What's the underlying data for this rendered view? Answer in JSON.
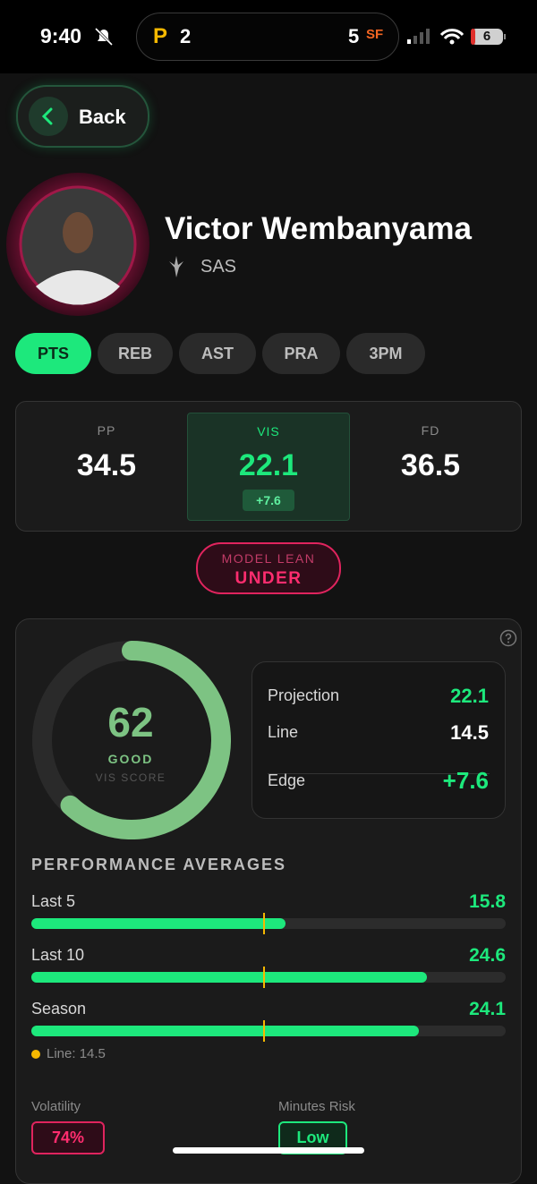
{
  "status_bar": {
    "time": "9:40",
    "away_logo": "P",
    "away_score": "2",
    "home_score": "5",
    "home_logo": "SF",
    "battery": "6"
  },
  "back": "Back",
  "player": {
    "name": "Victor Wembanyama",
    "team": "SAS"
  },
  "tabs": [
    "PTS",
    "REB",
    "AST",
    "PRA",
    "3PM"
  ],
  "lines": [
    {
      "label": "PP",
      "value": "34.5"
    },
    {
      "label": "VIS",
      "value": "22.1",
      "diff": "+7.6"
    },
    {
      "label": "FD",
      "value": "36.5"
    }
  ],
  "model_lean": {
    "label": "MODEL LEAN",
    "value": "UNDER"
  },
  "score": {
    "value": 62,
    "rating": "GOOD",
    "label": "VIS SCORE"
  },
  "summary": [
    {
      "label": "Projection",
      "value": "22.1"
    },
    {
      "label": "Line",
      "value": "14.5"
    },
    {
      "label": "Edge",
      "value": "+7.6"
    }
  ],
  "performance": {
    "title": "PERFORMANCE AVERAGES",
    "rows": [
      {
        "label": "Last 5",
        "value": 15.8
      },
      {
        "label": "Last 10",
        "value": 24.6
      },
      {
        "label": "Season",
        "value": 24.1
      }
    ],
    "line_label": "Line:",
    "line": 14.5
  },
  "volatility": {
    "label": "Volatility",
    "value": "74%"
  },
  "minutes_risk": {
    "label": "Minutes Risk",
    "value": "Low"
  }
}
